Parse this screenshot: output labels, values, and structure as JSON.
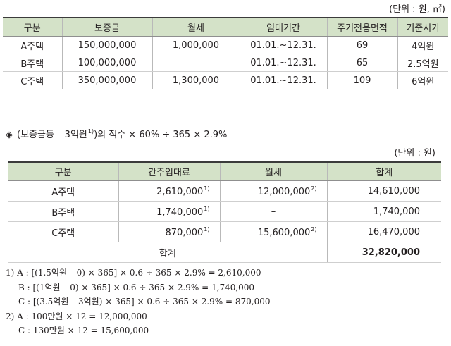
{
  "unit_label_1": "(단위 : 원, ㎡)",
  "table1": {
    "headers": [
      "구분",
      "보증금",
      "월세",
      "임대기간",
      "주거전용면적",
      "기준시가"
    ],
    "rows": [
      [
        "A주택",
        "150,000,000",
        "1,000,000",
        "01.01.~12.31.",
        "69",
        "4억원"
      ],
      [
        "B주택",
        "100,000,000",
        "–",
        "01.01.~12.31.",
        "65",
        "2.5억원"
      ],
      [
        "C주택",
        "350,000,000",
        "1,300,000",
        "01.01.~12.31.",
        "109",
        "6억원"
      ]
    ]
  },
  "formula": {
    "symbol": "◈",
    "text_before": "(보증금등 – 3억원",
    "superscript": "1)",
    "text_after": ")의 적수 × 60% ÷ 365 × 2.9%"
  },
  "unit_label_2": "(단위 : 원)",
  "table2": {
    "headers": [
      "구분",
      "간주임대료",
      "월세",
      "합계"
    ],
    "rows": [
      {
        "name": "A주택",
        "deemed": "2,610,000",
        "deemed_note": "1)",
        "rent": "12,000,000",
        "rent_note": "2)",
        "total": "14,610,000"
      },
      {
        "name": "B주택",
        "deemed": "1,740,000",
        "deemed_note": "1)",
        "rent": "–",
        "rent_note": "",
        "total": "1,740,000"
      },
      {
        "name": "C주택",
        "deemed": "870,000",
        "deemed_note": "1)",
        "rent": "15,600,000",
        "rent_note": "2)",
        "total": "16,470,000"
      }
    ],
    "total_label": "합계",
    "total_value": "32,820,000"
  },
  "notes": [
    "1) A : [(1.5억원 – 0) × 365] × 0.6 ÷ 365 × 2.9% = 2,610,000",
    "B : [(1억원 – 0) × 365] × 0.6 ÷ 365 × 2.9% = 1,740,000",
    "C : [(3.5억원 – 3억원) × 365] × 0.6 ÷ 365 × 2.9% = 870,000",
    "2) A : 100만원 × 12 = 12,000,000",
    "C : 130만원 × 12 = 15,600,000"
  ]
}
